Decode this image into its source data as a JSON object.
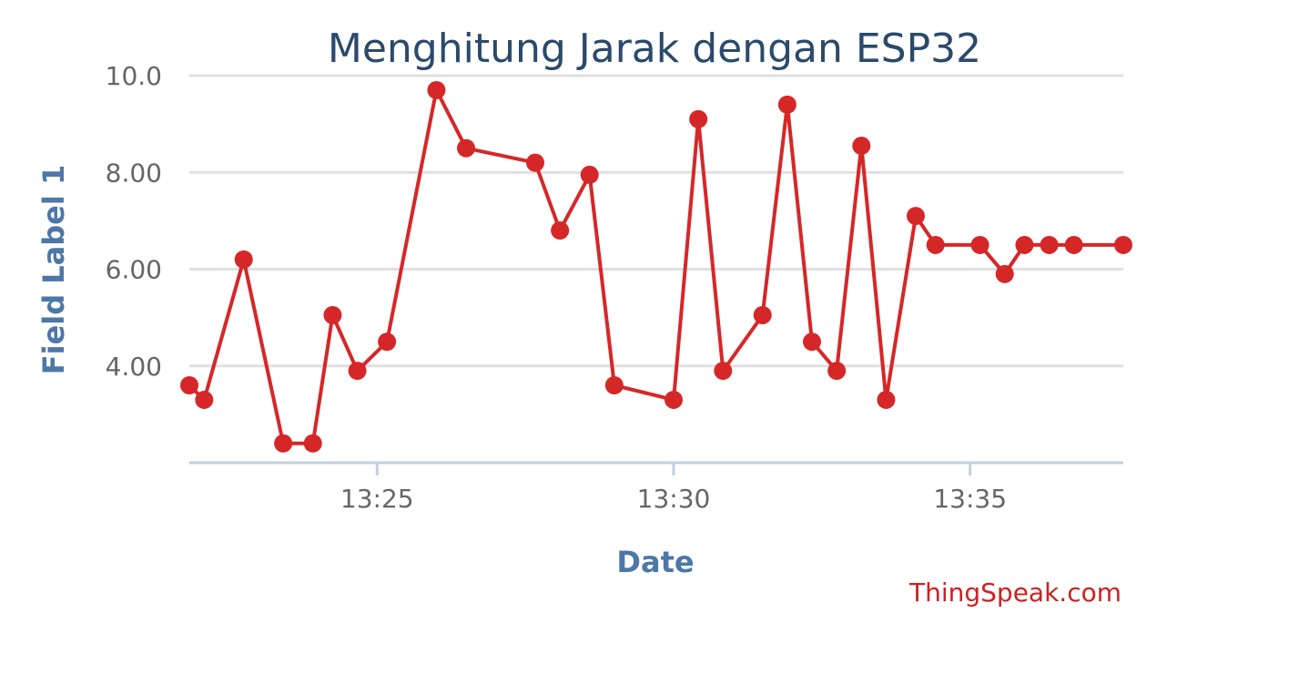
{
  "chart_data": {
    "type": "line",
    "title": "Menghitung Jarak dengan ESP32",
    "xlabel": "Date",
    "ylabel": "Field Label 1",
    "credit": "ThingSpeak.com",
    "grid": true,
    "ylim": [
      2.0,
      10.0
    ],
    "y_ticks": [
      {
        "value": 4.0,
        "label": "4.00"
      },
      {
        "value": 6.0,
        "label": "6.00"
      },
      {
        "value": 8.0,
        "label": "8.00"
      },
      {
        "value": 10.0,
        "label": "10.0"
      }
    ],
    "xlim": [
      "13:21:50",
      "13:37:35"
    ],
    "x_ticks": [
      "13:25",
      "13:30",
      "13:35"
    ],
    "series": [
      {
        "color": "#d62728",
        "points": [
          {
            "x": "13:21:50",
            "y": 3.6
          },
          {
            "x": "13:22:05",
            "y": 3.3
          },
          {
            "x": "13:22:45",
            "y": 6.2
          },
          {
            "x": "13:23:25",
            "y": 2.4
          },
          {
            "x": "13:23:55",
            "y": 2.4
          },
          {
            "x": "13:24:15",
            "y": 5.05
          },
          {
            "x": "13:24:40",
            "y": 3.9
          },
          {
            "x": "13:25:10",
            "y": 4.5
          },
          {
            "x": "13:26:00",
            "y": 9.7
          },
          {
            "x": "13:26:30",
            "y": 8.5
          },
          {
            "x": "13:27:40",
            "y": 8.2
          },
          {
            "x": "13:28:05",
            "y": 6.8
          },
          {
            "x": "13:28:35",
            "y": 7.95
          },
          {
            "x": "13:29:00",
            "y": 3.6
          },
          {
            "x": "13:30:00",
            "y": 3.3
          },
          {
            "x": "13:30:25",
            "y": 9.1
          },
          {
            "x": "13:30:50",
            "y": 3.9
          },
          {
            "x": "13:31:30",
            "y": 5.05
          },
          {
            "x": "13:31:55",
            "y": 9.4
          },
          {
            "x": "13:32:20",
            "y": 4.5
          },
          {
            "x": "13:32:45",
            "y": 3.9
          },
          {
            "x": "13:33:10",
            "y": 8.55
          },
          {
            "x": "13:33:35",
            "y": 3.3
          },
          {
            "x": "13:34:05",
            "y": 7.1
          },
          {
            "x": "13:34:25",
            "y": 6.5
          },
          {
            "x": "13:35:10",
            "y": 6.5
          },
          {
            "x": "13:35:35",
            "y": 5.9
          },
          {
            "x": "13:35:55",
            "y": 6.5
          },
          {
            "x": "13:36:20",
            "y": 6.5
          },
          {
            "x": "13:36:45",
            "y": 6.5
          },
          {
            "x": "13:37:35",
            "y": 6.5
          }
        ]
      }
    ]
  }
}
